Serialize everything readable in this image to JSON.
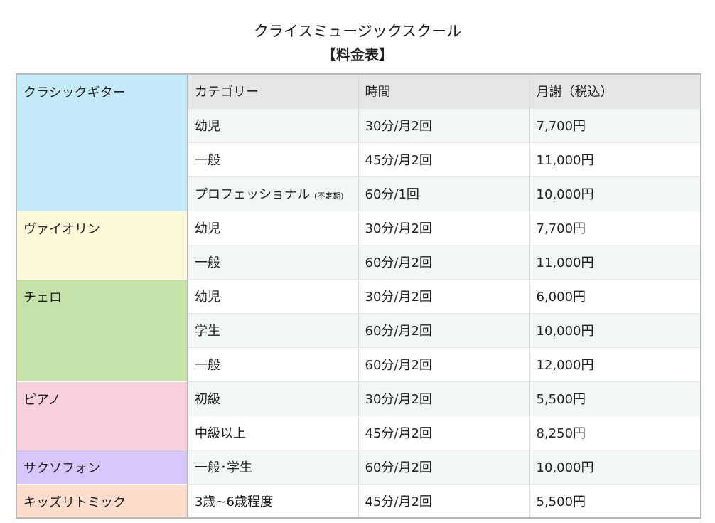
{
  "header": {
    "school_name": "クライスミュージックスクール",
    "title": "【料金表】"
  },
  "table": {
    "columns": [
      "カテゴリー",
      "時間",
      "月謝（税込）"
    ],
    "groups": [
      {
        "instrument": "クラシックギター",
        "color": "#c4eafa",
        "rows": [
          {
            "category": "幼児",
            "note": "",
            "time": "30分/月2回",
            "fee": "7,700円"
          },
          {
            "category": "一般",
            "note": "",
            "time": "45分/月2回",
            "fee": "11,000円"
          },
          {
            "category": "プロフェッショナル",
            "note": "(不定期)",
            "time": "60分/1回",
            "fee": "10,000円"
          }
        ]
      },
      {
        "instrument": "ヴァイオリン",
        "color": "#fdf9d8",
        "rows": [
          {
            "category": "幼児",
            "note": "",
            "time": "30分/月2回",
            "fee": "7,700円"
          },
          {
            "category": "一般",
            "note": "",
            "time": "60分/月2回",
            "fee": "11,000円"
          }
        ]
      },
      {
        "instrument": "チェロ",
        "color": "#c5e3a9",
        "rows": [
          {
            "category": "幼児",
            "note": "",
            "time": "30分/月2回",
            "fee": "6,000円"
          },
          {
            "category": "学生",
            "note": "",
            "time": "60分/月2回",
            "fee": "10,000円"
          },
          {
            "category": "一般",
            "note": "",
            "time": "60分/月2回",
            "fee": "12,000円"
          }
        ]
      },
      {
        "instrument": "ピアノ",
        "color": "#f7cfdd",
        "rows": [
          {
            "category": "初級",
            "note": "",
            "time": "30分/月2回",
            "fee": "5,500円"
          },
          {
            "category": "中級以上",
            "note": "",
            "time": "45分/月2回",
            "fee": "8,250円"
          }
        ]
      },
      {
        "instrument": "サクソフォン",
        "color": "#d6c6fb",
        "rows": [
          {
            "category": "一般･学生",
            "note": "",
            "time": "60分/月2回",
            "fee": "10,000円"
          }
        ]
      },
      {
        "instrument": "キッズリトミック",
        "color": "#fddccb",
        "rows": [
          {
            "category": "3歳~6歳程度",
            "note": "",
            "time": "45分/月2回",
            "fee": "5,500円"
          }
        ]
      }
    ]
  }
}
